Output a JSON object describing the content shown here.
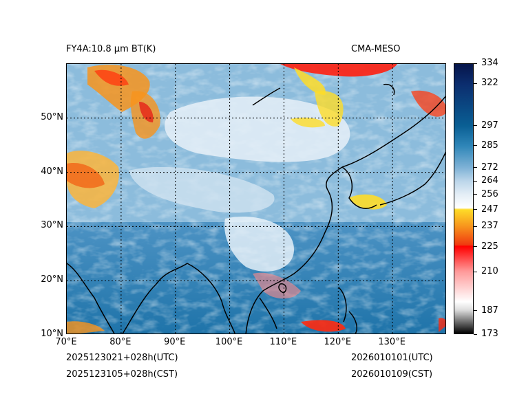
{
  "title": {
    "left": "FY4A:10.8 μm BT(K)",
    "right": "CMA-MESO"
  },
  "map": {
    "type": "satellite brightness temperature map",
    "lon_range": [
      70,
      140
    ],
    "lat_range": [
      10,
      60
    ],
    "x_ticks": [
      {
        "value": 70,
        "label": "70°E"
      },
      {
        "value": 80,
        "label": "80°E"
      },
      {
        "value": 90,
        "label": "90°E"
      },
      {
        "value": 100,
        "label": "100°E"
      },
      {
        "value": 110,
        "label": "110°E"
      },
      {
        "value": 120,
        "label": "120°E"
      },
      {
        "value": 130,
        "label": "130°E"
      }
    ],
    "y_ticks": [
      {
        "value": 50,
        "label": "50°N"
      },
      {
        "value": 40,
        "label": "40°N"
      },
      {
        "value": 30,
        "label": "30°N"
      },
      {
        "value": 20,
        "label": "20°N"
      },
      {
        "value": 10,
        "label": "10°N"
      }
    ]
  },
  "colorbar": {
    "range": [
      173,
      334
    ],
    "ticks": [
      {
        "value": 334,
        "label": "334"
      },
      {
        "value": 322,
        "label": "322"
      },
      {
        "value": 297,
        "label": "297"
      },
      {
        "value": 285,
        "label": "285"
      },
      {
        "value": 272,
        "label": "272"
      },
      {
        "value": 264,
        "label": "264"
      },
      {
        "value": 256,
        "label": "256"
      },
      {
        "value": 247,
        "label": "247"
      },
      {
        "value": 237,
        "label": "237"
      },
      {
        "value": 225,
        "label": "225"
      },
      {
        "value": 210,
        "label": "210"
      },
      {
        "value": 187,
        "label": "187"
      },
      {
        "value": 173,
        "label": "173"
      }
    ],
    "stops": [
      {
        "value": 173,
        "color": "#000000"
      },
      {
        "value": 187,
        "color": "#dcdcdc"
      },
      {
        "value": 192,
        "color": "#ffffff"
      },
      {
        "value": 210,
        "color": "#ff9a9a"
      },
      {
        "value": 225,
        "color": "#ff0000"
      },
      {
        "value": 226,
        "color": "#f03a10"
      },
      {
        "value": 237,
        "color": "#f7941d"
      },
      {
        "value": 247,
        "color": "#fedc28"
      },
      {
        "value": 248,
        "color": "#ffffff"
      },
      {
        "value": 256,
        "color": "#e4eef6"
      },
      {
        "value": 264,
        "color": "#bcd6ea"
      },
      {
        "value": 272,
        "color": "#7fb2d6"
      },
      {
        "value": 285,
        "color": "#2f86b8"
      },
      {
        "value": 297,
        "color": "#0a5f94"
      },
      {
        "value": 322,
        "color": "#0b2d6e"
      },
      {
        "value": 334,
        "color": "#06154a"
      }
    ]
  },
  "footer": {
    "init_utc": "2025123021+028h(UTC)",
    "init_cst": "2025123105+028h(CST)",
    "valid_utc": "2026010101(UTC)",
    "valid_cst": "2026010109(CST)"
  }
}
